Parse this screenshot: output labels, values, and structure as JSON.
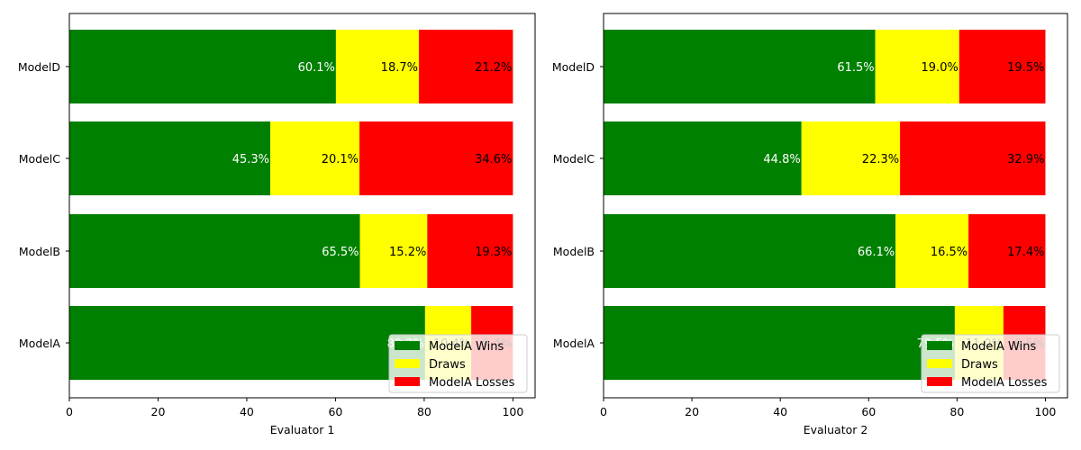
{
  "chart_data": [
    {
      "type": "bar",
      "orientation": "horizontal",
      "stacked": true,
      "xlabel": "Evaluator 1",
      "ylabel": "",
      "xlim": [
        0,
        105
      ],
      "xticks": [
        "0",
        "20",
        "40",
        "60",
        "80",
        "100"
      ],
      "categories": [
        "ModelA",
        "ModelB",
        "ModelC",
        "ModelD"
      ],
      "series": [
        {
          "name": "ModelA Wins",
          "color": "#008000",
          "values": [
            80.2,
            65.5,
            45.3,
            60.1
          ],
          "labels": [
            "80.2%",
            "65.5%",
            "45.3%",
            "60.1%"
          ],
          "label_color": "#ffffff"
        },
        {
          "name": "Draws",
          "color": "#ffff00",
          "values": [
            10.4,
            15.2,
            20.1,
            18.7
          ],
          "labels": [
            "10.4%",
            "15.2%",
            "20.1%",
            "18.7%"
          ],
          "label_color": "#000000"
        },
        {
          "name": "ModelA Losses",
          "color": "#ff0000",
          "values": [
            9.4,
            19.3,
            34.6,
            21.2
          ],
          "labels": [
            "9.4%",
            "19.3%",
            "34.6%",
            "21.2%"
          ],
          "label_color": "#000000"
        }
      ],
      "legend": "lower-right",
      "grid": false
    },
    {
      "type": "bar",
      "orientation": "horizontal",
      "stacked": true,
      "xlabel": "Evaluator 2",
      "ylabel": "",
      "xlim": [
        0,
        105
      ],
      "xticks": [
        "0",
        "20",
        "40",
        "60",
        "80",
        "100"
      ],
      "categories": [
        "ModelA",
        "ModelB",
        "ModelC",
        "ModelD"
      ],
      "series": [
        {
          "name": "ModelA Wins",
          "color": "#008000",
          "values": [
            79.5,
            66.1,
            44.8,
            61.5
          ],
          "labels": [
            "79.5%",
            "66.1%",
            "44.8%",
            "61.5%"
          ],
          "label_color": "#ffffff"
        },
        {
          "name": "Draws",
          "color": "#ffff00",
          "values": [
            11.0,
            16.5,
            22.3,
            19.0
          ],
          "labels": [
            "11.0%",
            "16.5%",
            "22.3%",
            "19.0%"
          ],
          "label_color": "#000000"
        },
        {
          "name": "ModelA Losses",
          "color": "#ff0000",
          "values": [
            9.5,
            17.4,
            32.9,
            19.5
          ],
          "labels": [
            "9.5%",
            "17.4%",
            "32.9%",
            "19.5%"
          ],
          "label_color": "#000000"
        }
      ],
      "legend": "lower-right",
      "grid": false
    }
  ]
}
